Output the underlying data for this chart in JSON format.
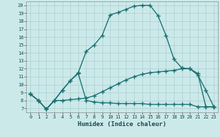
{
  "xlabel": "Humidex (Indice chaleur)",
  "bg_color": "#cce9ea",
  "grid_color": "#aacdd0",
  "line_color": "#1a7070",
  "xlim": [
    -0.5,
    23.5
  ],
  "ylim": [
    6.5,
    20.5
  ],
  "xticks": [
    0,
    1,
    2,
    3,
    4,
    5,
    6,
    7,
    8,
    9,
    10,
    11,
    12,
    13,
    14,
    15,
    16,
    17,
    18,
    19,
    20,
    21,
    22,
    23
  ],
  "yticks": [
    7,
    8,
    9,
    10,
    11,
    12,
    13,
    14,
    15,
    16,
    17,
    18,
    19,
    20
  ],
  "line1_x": [
    0,
    1,
    2,
    3,
    4,
    5,
    6,
    7,
    8,
    9,
    10,
    11,
    12,
    13,
    14,
    15,
    16,
    17,
    18,
    19,
    20,
    21,
    22,
    23
  ],
  "line1_y": [
    8.8,
    8.0,
    6.9,
    8.0,
    9.3,
    10.5,
    11.4,
    8.0,
    7.8,
    7.7,
    7.7,
    7.6,
    7.6,
    7.6,
    7.6,
    7.5,
    7.5,
    7.5,
    7.5,
    7.5,
    7.5,
    7.2,
    7.2,
    7.2
  ],
  "line2_x": [
    0,
    1,
    2,
    3,
    4,
    5,
    6,
    7,
    8,
    9,
    10,
    11,
    12,
    13,
    14,
    15,
    16,
    17,
    18,
    19,
    20,
    21,
    22,
    23
  ],
  "line2_y": [
    8.8,
    8.0,
    6.9,
    8.0,
    8.0,
    8.1,
    8.2,
    8.3,
    8.6,
    9.1,
    9.6,
    10.1,
    10.6,
    11.0,
    11.3,
    11.5,
    11.6,
    11.7,
    11.8,
    12.0,
    12.0,
    11.4,
    7.2,
    7.2
  ],
  "line3_x": [
    0,
    1,
    2,
    3,
    4,
    5,
    6,
    7,
    8,
    9,
    10,
    11,
    12,
    13,
    14,
    15,
    16,
    17,
    18,
    19,
    20,
    21,
    22,
    23
  ],
  "line3_y": [
    8.8,
    8.0,
    6.9,
    8.0,
    9.3,
    10.5,
    11.5,
    14.2,
    15.0,
    16.2,
    18.8,
    19.1,
    19.5,
    19.9,
    20.0,
    20.0,
    18.7,
    16.2,
    13.2,
    12.1,
    12.0,
    11.2,
    9.3,
    7.2
  ],
  "marker": "+",
  "marker_size": 4,
  "linewidth": 1.0,
  "tick_fontsize": 5.0,
  "xlabel_fontsize": 6.5
}
